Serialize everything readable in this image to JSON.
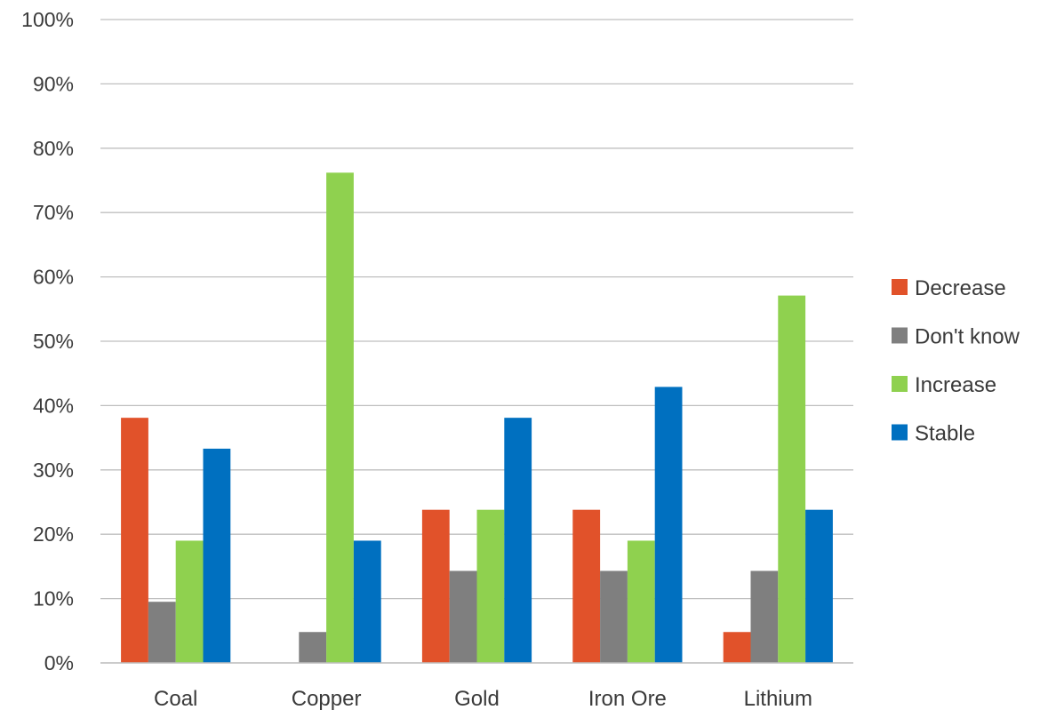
{
  "chart_data": {
    "type": "bar",
    "categories": [
      "Coal",
      "Copper",
      "Gold",
      "Iron Ore",
      "Lithium"
    ],
    "series": [
      {
        "name": "Decrease",
        "color": "#E1522A",
        "values": [
          38.1,
          0,
          23.8,
          23.8,
          4.8
        ]
      },
      {
        "name": "Don't know",
        "color": "#7F7F7F",
        "values": [
          9.5,
          4.8,
          14.3,
          14.3,
          14.3
        ]
      },
      {
        "name": "Increase",
        "color": "#8FD14F",
        "values": [
          19.0,
          76.2,
          23.8,
          19.0,
          57.1
        ]
      },
      {
        "name": "Stable",
        "color": "#0070C0",
        "values": [
          33.3,
          19.0,
          38.1,
          42.9,
          23.8
        ]
      }
    ],
    "ylim": [
      0,
      100
    ],
    "yticks": [
      0,
      10,
      20,
      30,
      40,
      50,
      60,
      70,
      80,
      90,
      100
    ],
    "ytick_labels": [
      "0%",
      "10%",
      "20%",
      "30%",
      "40%",
      "50%",
      "60%",
      "70%",
      "80%",
      "90%",
      "100%"
    ],
    "grid": true,
    "gridline_color": "#BFBFBF",
    "legend_position": "right",
    "title": "",
    "xlabel": "",
    "ylabel": ""
  }
}
